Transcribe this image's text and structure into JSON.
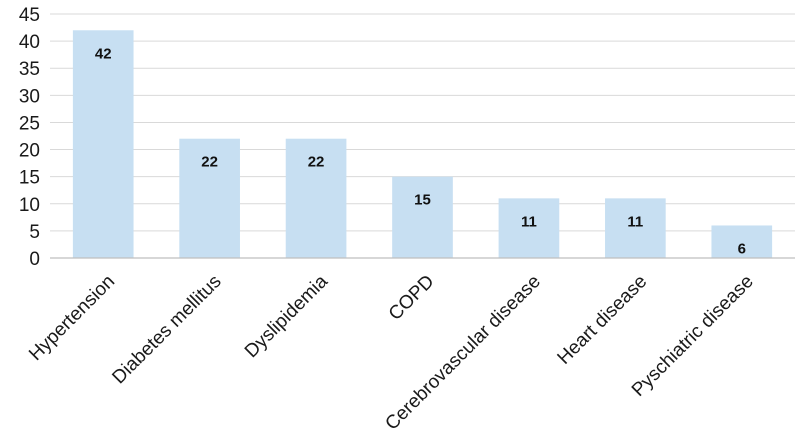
{
  "chart_data": {
    "type": "bar",
    "categories": [
      "Hypertension",
      "Diabetes mellitus",
      "Dyslipidemia",
      "COPD",
      "Cerebrovascular disease",
      "Heart disease",
      "Pyschiatric disease"
    ],
    "values": [
      42,
      22,
      22,
      15,
      11,
      11,
      6
    ],
    "ylim": [
      0,
      45
    ],
    "yticks": [
      0,
      5,
      10,
      15,
      20,
      25,
      30,
      35,
      40,
      45
    ],
    "title": "",
    "xlabel": "",
    "ylabel": "",
    "grid": true,
    "data_labels": true,
    "legend": "none",
    "colors": {
      "bar": "#c7dff2",
      "grid": "#d9d9d9",
      "axis": "#bfbfbf",
      "text": "#1a1a1a"
    }
  }
}
